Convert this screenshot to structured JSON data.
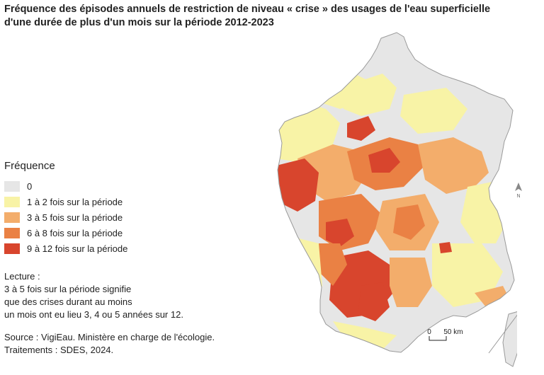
{
  "title_line1": "Fréquence des épisodes annuels de restriction de niveau « crise » des usages de l'eau superficielle",
  "title_line2": "d'une durée de plus d'un mois sur la période 2012-2023",
  "legend": {
    "title": "Fréquence",
    "items": [
      {
        "label": "0",
        "color": "#e6e6e6"
      },
      {
        "label": "1 à 2 fois sur la période",
        "color": "#f8f3a6"
      },
      {
        "label": "3 à 5 fois sur la période",
        "color": "#f3ad6b"
      },
      {
        "label": "6 à 8 fois sur la période",
        "color": "#ea8144"
      },
      {
        "label": "9 à 12 fois sur la période",
        "color": "#d8452d"
      }
    ]
  },
  "reading": {
    "label": "Lecture :",
    "line1": "3 à 5 fois sur la période signifie",
    "line2": "que des crises durant au moins",
    "line3": "un mois ont eu lieu 3, 4 ou 5 années sur 12."
  },
  "source": {
    "line1": "Source : VigiEau. Ministère en charge de l'écologie.",
    "line2": "Traitements : SDES, 2024."
  },
  "scale": {
    "zero": "0",
    "distance": "50 km"
  },
  "north": "N"
}
